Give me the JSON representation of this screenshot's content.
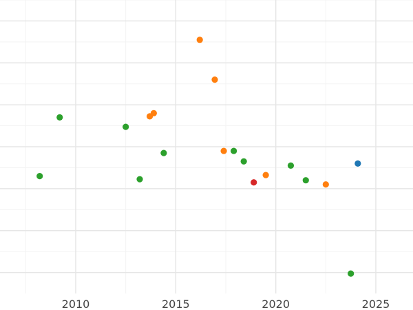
{
  "chart_data": {
    "type": "scatter",
    "title": "",
    "xlabel": "",
    "ylabel": "",
    "xlim": [
      2006.2,
      2026.9
    ],
    "ylim": [
      0,
      14
    ],
    "grid": true,
    "legend": "none",
    "x_ticks": [
      2010,
      2015,
      2020,
      2025
    ],
    "x_tick_labels": [
      "2010",
      "2015",
      "2020",
      "2025"
    ],
    "x_minor_gridlines": [
      2007.5,
      2012.5,
      2017.5,
      2022.5
    ],
    "y_gridlines": [
      1,
      3,
      5,
      7,
      9,
      11,
      13
    ],
    "y_minor_gridlines": [
      2,
      4,
      6,
      8,
      10,
      12,
      14
    ],
    "colors": {
      "green": "#2ca02c",
      "orange": "#ff7f0e",
      "blue": "#1f77b4",
      "red": "#d62728"
    },
    "points": [
      {
        "x": 2008.2,
        "y": 5.6,
        "color": "green"
      },
      {
        "x": 2009.2,
        "y": 8.4,
        "color": "green"
      },
      {
        "x": 2012.5,
        "y": 7.95,
        "color": "green"
      },
      {
        "x": 2013.2,
        "y": 5.45,
        "color": "green"
      },
      {
        "x": 2013.7,
        "y": 8.45,
        "color": "orange"
      },
      {
        "x": 2013.9,
        "y": 8.6,
        "color": "orange"
      },
      {
        "x": 2014.4,
        "y": 6.7,
        "color": "green"
      },
      {
        "x": 2016.2,
        "y": 12.1,
        "color": "orange"
      },
      {
        "x": 2016.95,
        "y": 10.2,
        "color": "orange"
      },
      {
        "x": 2017.4,
        "y": 6.8,
        "color": "orange"
      },
      {
        "x": 2017.9,
        "y": 6.8,
        "color": "green"
      },
      {
        "x": 2018.4,
        "y": 6.3,
        "color": "green"
      },
      {
        "x": 2018.9,
        "y": 5.3,
        "color": "red"
      },
      {
        "x": 2019.5,
        "y": 5.65,
        "color": "orange"
      },
      {
        "x": 2020.75,
        "y": 6.1,
        "color": "green"
      },
      {
        "x": 2021.5,
        "y": 5.4,
        "color": "green"
      },
      {
        "x": 2022.5,
        "y": 5.2,
        "color": "orange"
      },
      {
        "x": 2023.75,
        "y": 0.95,
        "color": "green"
      },
      {
        "x": 2024.1,
        "y": 6.2,
        "color": "blue"
      }
    ]
  }
}
